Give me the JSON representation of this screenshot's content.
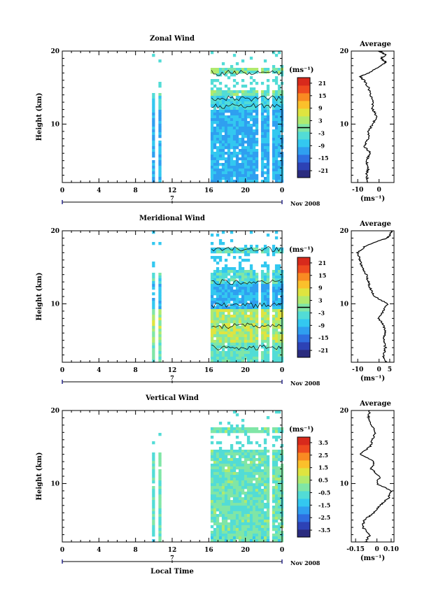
{
  "chart_data": [
    {
      "type": "heatmap",
      "title": "Zonal Wind",
      "ylabel": "Height (km)",
      "y_ticks": [
        "20",
        "10"
      ],
      "x_ticks": [
        "0",
        "4",
        "8",
        "12",
        "16",
        "20",
        "0"
      ],
      "xlim": [
        0,
        24
      ],
      "ylim": [
        2,
        20
      ],
      "day_label": "7",
      "month_label": "Nov 2008",
      "colorbar_unit": "(ms⁻¹)",
      "colorbar_ticks": [
        "21",
        "15",
        "9",
        "3",
        "-3",
        "-9",
        "-15",
        "-21"
      ],
      "colorbar_range": [
        -24,
        24
      ],
      "zero_line": 0,
      "data_columns": [
        [
          9.8,
          10.0
        ],
        [
          10.5,
          10.7
        ],
        [
          16.2,
          24
        ]
      ],
      "profile": {
        "title": "Average",
        "xlabel": "(ms⁻¹)",
        "x_ticks": [
          "-10",
          "0"
        ],
        "xlim": [
          -13,
          7
        ],
        "y_ticks": [
          "20",
          "10"
        ],
        "height": [
          2,
          3,
          4,
          5,
          6,
          7,
          8,
          9,
          10,
          11,
          12,
          13,
          14,
          15,
          16,
          16.5,
          17,
          18,
          18.5,
          19,
          19.5,
          20
        ],
        "value": [
          -5,
          -6,
          -5,
          -6,
          -4,
          -7,
          -5,
          -5,
          -3,
          -1,
          -3,
          -3,
          -4,
          -5,
          -7,
          -9,
          -5,
          1,
          3,
          1,
          3,
          0
        ]
      }
    },
    {
      "type": "heatmap",
      "title": "Meridional Wind",
      "ylabel": "Height (km)",
      "y_ticks": [
        "20",
        "10"
      ],
      "x_ticks": [
        "0",
        "4",
        "8",
        "12",
        "16",
        "20",
        "0"
      ],
      "xlim": [
        0,
        24
      ],
      "ylim": [
        2,
        20
      ],
      "day_label": "7",
      "month_label": "Nov 2008",
      "colorbar_unit": "(ms⁻¹)",
      "colorbar_ticks": [
        "21",
        "15",
        "9",
        "3",
        "-3",
        "-9",
        "-15",
        "-21"
      ],
      "colorbar_range": [
        -24,
        24
      ],
      "zero_line": 0,
      "data_columns": [
        [
          9.8,
          10.0
        ],
        [
          10.5,
          10.7
        ],
        [
          16.2,
          24
        ]
      ],
      "profile": {
        "title": "Average",
        "xlabel": "(ms⁻¹)",
        "x_ticks": [
          "-10",
          "0",
          "5"
        ],
        "xlim": [
          -13,
          7
        ],
        "y_ticks": [
          "20",
          "10"
        ],
        "height": [
          2,
          3,
          4,
          5,
          6,
          7,
          8,
          9,
          10,
          11,
          12,
          13,
          14,
          15,
          16,
          17,
          18,
          19,
          19.5,
          20
        ],
        "value": [
          3,
          2,
          3,
          2,
          3,
          2,
          0,
          2,
          4,
          -2,
          -4,
          -5,
          -6,
          -8,
          -9,
          -10,
          -6,
          4,
          5,
          6
        ]
      }
    },
    {
      "type": "heatmap",
      "title": "Vertical Wind",
      "ylabel": "Height (km)",
      "y_ticks": [
        "20",
        "10"
      ],
      "x_ticks": [
        "0",
        "4",
        "8",
        "12",
        "16",
        "20",
        "0"
      ],
      "xlim": [
        0,
        24
      ],
      "ylim": [
        2,
        20
      ],
      "day_label": "7",
      "month_label": "Nov 2008",
      "xlabel": "Local Time",
      "colorbar_unit": "(ms⁻¹)",
      "colorbar_ticks": [
        "3.5",
        "2.5",
        "1.5",
        "0.5",
        "-0.5",
        "-1.5",
        "-2.5",
        "-3.5"
      ],
      "colorbar_range": [
        -4,
        4
      ],
      "data_columns": [
        [
          9.8,
          10.0
        ],
        [
          10.5,
          10.7
        ],
        [
          16.2,
          24
        ]
      ],
      "profile": {
        "title": "Average",
        "xlabel": "(ms⁻¹)",
        "x_ticks": [
          "-0.15",
          "0",
          "0.10"
        ],
        "xlim": [
          -0.18,
          0.12
        ],
        "y_ticks": [
          "20",
          "10"
        ],
        "height": [
          2,
          3,
          4,
          5,
          6,
          7,
          8,
          9,
          10,
          11,
          12,
          13,
          14,
          15,
          16,
          17,
          18,
          19,
          20
        ],
        "value": [
          -0.08,
          -0.05,
          -0.1,
          -0.09,
          -0.02,
          0.02,
          0.08,
          0.1,
          0.0,
          0.02,
          -0.04,
          -0.02,
          -0.12,
          -0.05,
          -0.03,
          -0.01,
          -0.04,
          -0.06,
          -0.05
        ]
      }
    }
  ],
  "colors": {
    "scale": [
      "#2b2c7f",
      "#2d42b5",
      "#2f6ee0",
      "#2f9ff0",
      "#33c8f0",
      "#52dcd6",
      "#80e6a6",
      "#b0ea6e",
      "#dfe440",
      "#fbc02b",
      "#f98a22",
      "#ee4a1f",
      "#d82a1c"
    ]
  }
}
